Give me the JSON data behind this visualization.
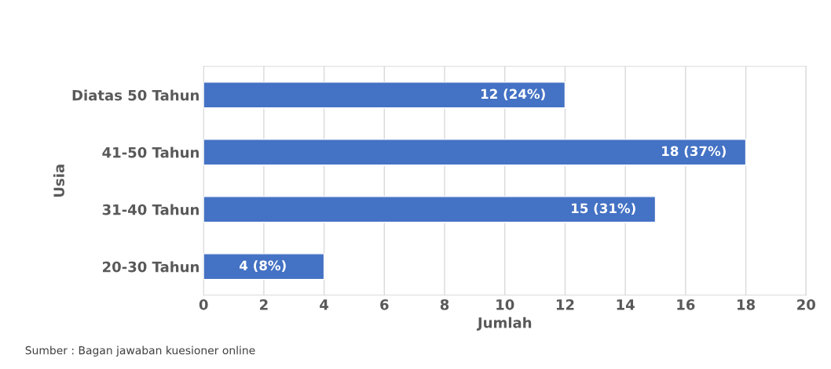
{
  "chart_data": {
    "type": "bar",
    "orientation": "horizontal",
    "categories": [
      "Diatas 50 Tahun",
      "41-50 Tahun",
      "31-40 Tahun",
      "20-30 Tahun"
    ],
    "values": [
      12,
      18,
      15,
      4
    ],
    "value_labels": [
      "12 (24%)",
      "18 (37%)",
      "15 (31%)",
      "4 (8%)"
    ],
    "color": "#4472c4",
    "xlim": [
      0,
      20
    ],
    "xticks": [
      0,
      2,
      4,
      6,
      8,
      10,
      12,
      14,
      16,
      18,
      20
    ],
    "xlabel": "Jumlah",
    "ylabel": "Usia",
    "grid": "x",
    "annotations": [
      "Sumber : Bagan jawaban kuesioner online"
    ]
  }
}
